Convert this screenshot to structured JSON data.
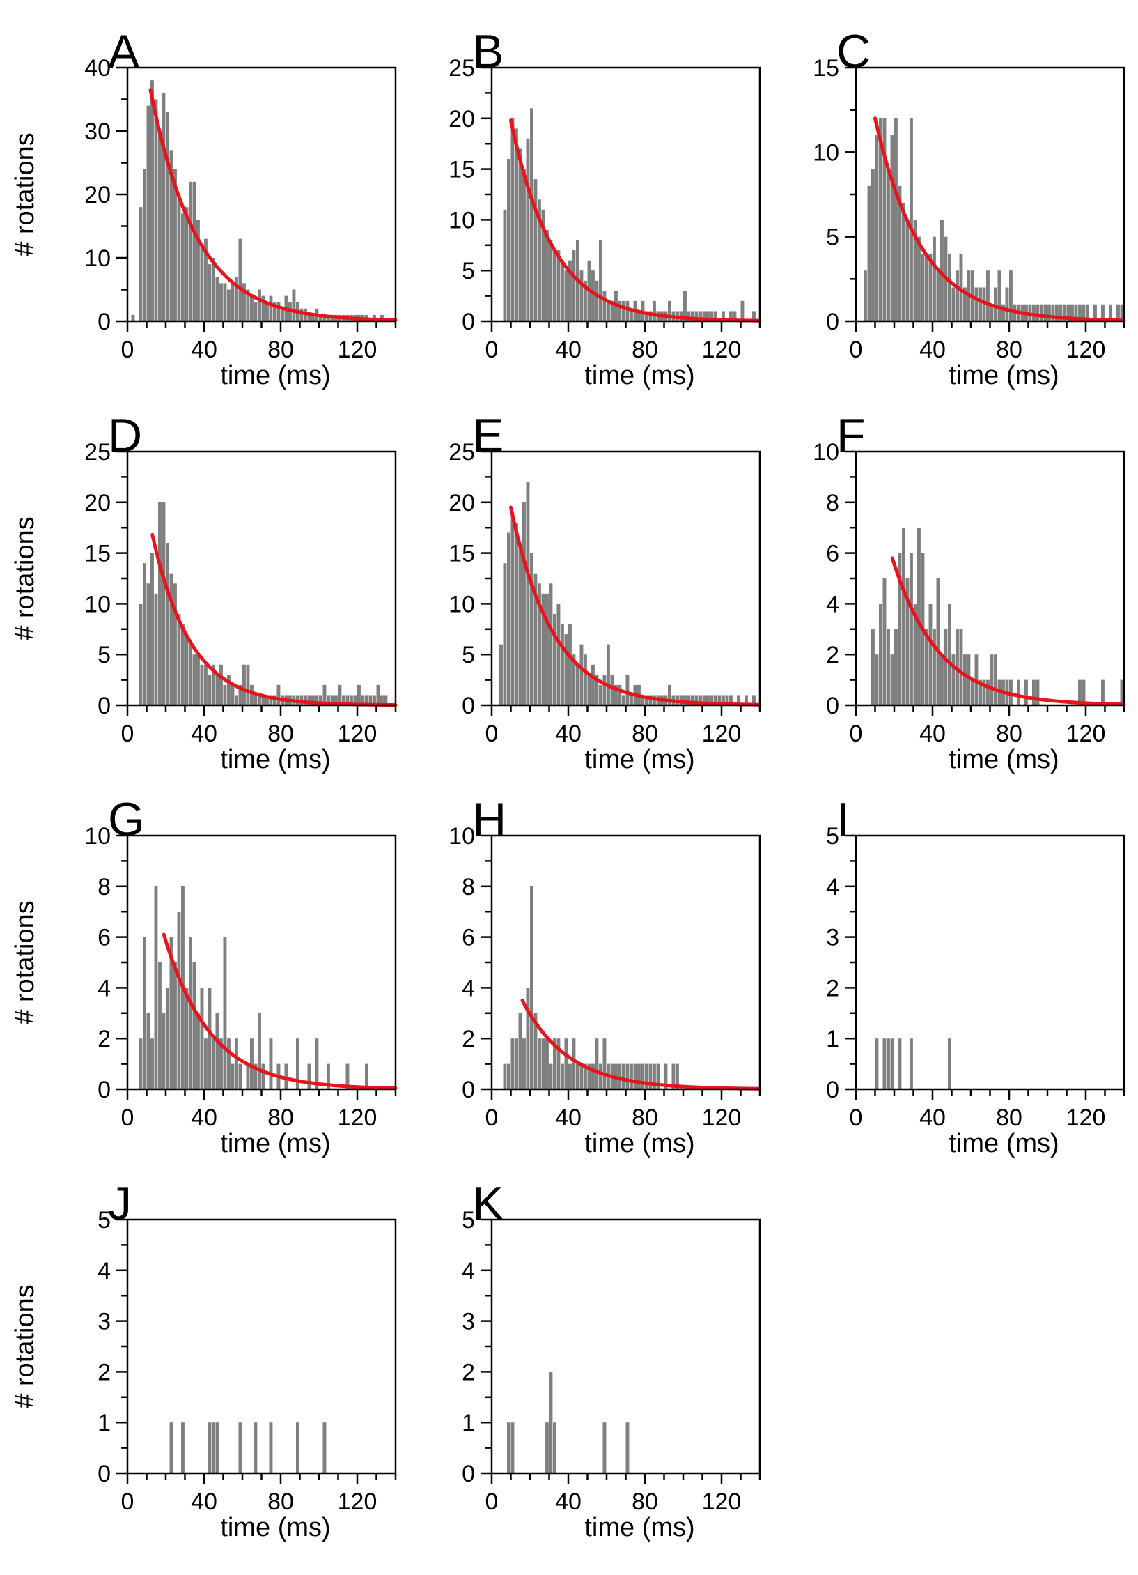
{
  "figure": {
    "xlabel": "time (ms)",
    "ylabel": "# rotations",
    "colors": {
      "bars": "#7f7f7f",
      "fit": "#e8141c",
      "axes": "#000000"
    }
  },
  "chart_data": [
    {
      "panel": "A",
      "type": "bar",
      "xlabel": "time (ms)",
      "ylabel": "# rotations",
      "xlim": [
        0,
        140
      ],
      "ylim": [
        0,
        40
      ],
      "xticks": [
        0,
        40,
        80,
        120
      ],
      "yticks": [
        0,
        10,
        20,
        30,
        40
      ],
      "bin_width": 2,
      "bins_start": [
        2,
        6,
        8,
        10,
        12,
        14,
        16,
        18,
        20,
        22,
        24,
        26,
        28,
        30,
        32,
        34,
        36,
        38,
        40,
        42,
        44,
        46,
        48,
        50,
        52,
        54,
        56,
        58,
        60,
        62,
        64,
        66,
        68,
        70,
        72,
        74,
        76,
        78,
        80,
        82,
        84,
        86,
        88,
        90,
        92,
        94,
        96,
        98,
        100,
        102,
        104,
        106,
        108,
        110,
        112,
        114,
        116,
        118,
        120,
        122,
        124,
        126,
        128,
        130,
        132,
        134
      ],
      "values": [
        1,
        18,
        24,
        34,
        38,
        35,
        30,
        36,
        33,
        27,
        24,
        20,
        17,
        18,
        22,
        22,
        16,
        12,
        13,
        9,
        10,
        7,
        6,
        6,
        5,
        6,
        7,
        13,
        6,
        5,
        4,
        3,
        5,
        4,
        3,
        4,
        3,
        3,
        2,
        4,
        3,
        5,
        3,
        2,
        2,
        1,
        1,
        2,
        1,
        1,
        1,
        1,
        1,
        1,
        1,
        1,
        1,
        1,
        1,
        1,
        1,
        0,
        1,
        0,
        1,
        0
      ],
      "fit": {
        "type": "exponential",
        "A": 36.5,
        "tau": 24,
        "x_start": 12,
        "x_end": 140
      }
    },
    {
      "panel": "B",
      "type": "bar",
      "xlabel": "time (ms)",
      "ylabel": "# rotations",
      "xlim": [
        0,
        140
      ],
      "ylim": [
        0,
        25
      ],
      "xticks": [
        0,
        40,
        80,
        120
      ],
      "yticks": [
        0,
        5,
        10,
        15,
        20,
        25
      ],
      "bin_width": 2,
      "bins_start": [
        2,
        6,
        8,
        10,
        12,
        14,
        16,
        18,
        20,
        22,
        24,
        26,
        28,
        30,
        32,
        34,
        36,
        38,
        40,
        42,
        44,
        46,
        48,
        50,
        52,
        54,
        56,
        58,
        60,
        62,
        64,
        66,
        68,
        70,
        72,
        74,
        76,
        78,
        80,
        82,
        84,
        86,
        88,
        90,
        92,
        94,
        96,
        98,
        100,
        102,
        104,
        106,
        108,
        110,
        112,
        114,
        116,
        118,
        120,
        122,
        124,
        126,
        128,
        130,
        132,
        134,
        136,
        138
      ],
      "values": [
        0,
        11,
        16,
        20,
        19,
        17,
        15,
        18,
        21,
        14,
        12,
        11,
        9,
        8,
        7,
        7,
        6,
        5,
        6,
        7,
        8,
        5,
        4,
        6,
        5,
        4,
        8,
        3,
        2,
        2,
        3,
        2,
        2,
        2,
        1,
        2,
        1,
        2,
        1,
        1,
        2,
        1,
        1,
        1,
        2,
        1,
        1,
        1,
        3,
        1,
        1,
        1,
        1,
        1,
        1,
        1,
        1,
        0,
        1,
        0,
        1,
        1,
        0,
        2,
        0,
        0,
        1,
        0
      ],
      "fit": {
        "type": "exponential",
        "A": 19.8,
        "tau": 22,
        "x_start": 10,
        "x_end": 140
      }
    },
    {
      "panel": "C",
      "type": "bar",
      "xlabel": "time (ms)",
      "ylabel": "# rotations",
      "xlim": [
        0,
        140
      ],
      "ylim": [
        0,
        15
      ],
      "xticks": [
        0,
        40,
        80,
        120
      ],
      "yticks": [
        0,
        5,
        10,
        15
      ],
      "bin_width": 2,
      "bins_start": [
        4,
        6,
        8,
        10,
        12,
        14,
        16,
        18,
        20,
        22,
        24,
        26,
        28,
        30,
        32,
        34,
        36,
        38,
        40,
        42,
        44,
        46,
        48,
        50,
        52,
        54,
        56,
        58,
        60,
        62,
        64,
        66,
        68,
        70,
        72,
        74,
        76,
        78,
        80,
        82,
        84,
        86,
        88,
        90,
        92,
        94,
        96,
        98,
        100,
        102,
        104,
        106,
        108,
        110,
        112,
        114,
        116,
        118,
        120,
        122,
        124,
        126,
        128,
        130,
        132,
        134,
        136,
        138
      ],
      "values": [
        3,
        8,
        9,
        11,
        12,
        12,
        9,
        11,
        12,
        8,
        7,
        6,
        12,
        6,
        5,
        4,
        4,
        4,
        5,
        3,
        6,
        5,
        4,
        2,
        3,
        4,
        2,
        3,
        3,
        2,
        2,
        2,
        3,
        1,
        2,
        3,
        1,
        2,
        3,
        1,
        1,
        1,
        1,
        1,
        1,
        1,
        1,
        1,
        1,
        1,
        1,
        1,
        1,
        1,
        1,
        1,
        1,
        1,
        1,
        0,
        1,
        0,
        1,
        0,
        1,
        0,
        1,
        1
      ],
      "fit": {
        "type": "exponential",
        "A": 12.0,
        "tau": 24,
        "x_start": 10,
        "x_end": 140
      }
    },
    {
      "panel": "D",
      "type": "bar",
      "xlabel": "time (ms)",
      "ylabel": "# rotations",
      "xlim": [
        0,
        140
      ],
      "ylim": [
        0,
        25
      ],
      "xticks": [
        0,
        40,
        80,
        120
      ],
      "yticks": [
        0,
        5,
        10,
        15,
        20,
        25
      ],
      "bin_width": 2,
      "bins_start": [
        6,
        8,
        10,
        12,
        14,
        16,
        18,
        20,
        22,
        24,
        26,
        28,
        30,
        32,
        34,
        36,
        38,
        40,
        42,
        44,
        46,
        48,
        50,
        52,
        54,
        56,
        58,
        60,
        62,
        64,
        66,
        68,
        70,
        72,
        74,
        76,
        78,
        80,
        82,
        84,
        86,
        88,
        90,
        92,
        94,
        96,
        98,
        100,
        102,
        104,
        106,
        108,
        110,
        112,
        114,
        116,
        118,
        120,
        122,
        124,
        126,
        128,
        130,
        132,
        134,
        136
      ],
      "values": [
        10,
        14,
        12,
        15,
        11,
        20,
        20,
        16,
        13,
        12,
        9,
        8,
        7,
        6,
        5,
        5,
        4,
        4,
        3,
        4,
        3,
        4,
        2,
        3,
        2,
        1,
        2,
        4,
        4,
        2,
        1,
        1,
        1,
        1,
        1,
        1,
        2,
        1,
        1,
        1,
        1,
        1,
        1,
        1,
        1,
        1,
        1,
        1,
        2,
        1,
        1,
        1,
        2,
        1,
        1,
        1,
        1,
        2,
        1,
        1,
        1,
        1,
        2,
        1,
        1,
        0
      ],
      "fit": {
        "type": "exponential",
        "A": 16.8,
        "tau": 20,
        "x_start": 13,
        "x_end": 140
      }
    },
    {
      "panel": "E",
      "type": "bar",
      "xlabel": "time (ms)",
      "ylabel": "# rotations",
      "xlim": [
        0,
        140
      ],
      "ylim": [
        0,
        25
      ],
      "xticks": [
        0,
        40,
        80,
        120
      ],
      "yticks": [
        0,
        5,
        10,
        15,
        20,
        25
      ],
      "bin_width": 2,
      "bins_start": [
        4,
        6,
        8,
        10,
        12,
        14,
        16,
        18,
        20,
        22,
        24,
        26,
        28,
        30,
        32,
        34,
        36,
        38,
        40,
        42,
        44,
        46,
        48,
        50,
        52,
        54,
        56,
        58,
        60,
        62,
        64,
        66,
        68,
        70,
        72,
        74,
        76,
        78,
        80,
        82,
        84,
        86,
        88,
        90,
        92,
        94,
        96,
        98,
        100,
        102,
        104,
        106,
        108,
        110,
        112,
        114,
        116,
        118,
        120,
        122,
        124,
        126,
        128,
        130,
        132,
        134,
        136,
        138
      ],
      "values": [
        6,
        14,
        17,
        19,
        18,
        16,
        20,
        22,
        15,
        13,
        12,
        11,
        11,
        12,
        9,
        10,
        8,
        7,
        8,
        5,
        4,
        6,
        5,
        3,
        4,
        3,
        2,
        3,
        6,
        3,
        2,
        2,
        1,
        3,
        1,
        2,
        2,
        1,
        1,
        1,
        1,
        1,
        1,
        1,
        2,
        1,
        1,
        1,
        1,
        1,
        1,
        1,
        1,
        1,
        1,
        1,
        1,
        1,
        1,
        1,
        1,
        0,
        1,
        0,
        1,
        0,
        1,
        0
      ],
      "fit": {
        "type": "exponential",
        "A": 19.5,
        "tau": 22,
        "x_start": 10,
        "x_end": 140
      }
    },
    {
      "panel": "F",
      "type": "bar",
      "xlabel": "time (ms)",
      "ylabel": "# rotations",
      "xlim": [
        0,
        140
      ],
      "ylim": [
        0,
        10
      ],
      "xticks": [
        0,
        40,
        80,
        120
      ],
      "yticks": [
        0,
        2,
        4,
        6,
        8,
        10
      ],
      "bin_width": 2,
      "bins_start": [
        8,
        10,
        12,
        14,
        16,
        18,
        20,
        22,
        24,
        26,
        28,
        30,
        32,
        34,
        36,
        38,
        40,
        42,
        44,
        46,
        48,
        50,
        52,
        54,
        56,
        58,
        60,
        62,
        64,
        66,
        68,
        70,
        72,
        74,
        76,
        78,
        80,
        82,
        84,
        86,
        88,
        90,
        92,
        94,
        96,
        98,
        100,
        102,
        104,
        106,
        108,
        110,
        112,
        114,
        116,
        118,
        120,
        122,
        124,
        126,
        128,
        130,
        132,
        134,
        136,
        138
      ],
      "values": [
        3,
        2,
        4,
        5,
        3,
        2,
        3,
        6,
        7,
        5,
        6,
        4,
        7,
        6,
        3,
        4,
        3,
        5,
        2,
        3,
        4,
        2,
        3,
        3,
        2,
        2,
        1,
        2,
        1,
        1,
        1,
        2,
        2,
        1,
        1,
        1,
        1,
        0,
        1,
        0,
        1,
        0,
        1,
        1,
        0,
        0,
        0,
        0,
        0,
        0,
        0,
        0,
        0,
        0,
        1,
        1,
        0,
        0,
        0,
        0,
        1,
        0,
        0,
        0,
        0,
        1
      ],
      "fit": {
        "type": "exponential",
        "A": 5.8,
        "tau": 24,
        "x_start": 19,
        "x_end": 140
      }
    },
    {
      "panel": "G",
      "type": "bar",
      "xlabel": "time (ms)",
      "ylabel": "# rotations",
      "xlim": [
        0,
        140
      ],
      "ylim": [
        0,
        10
      ],
      "xticks": [
        0,
        40,
        80,
        120
      ],
      "yticks": [
        0,
        2,
        4,
        6,
        8,
        10
      ],
      "bin_width": 2,
      "bins_start": [
        6,
        8,
        10,
        12,
        14,
        16,
        18,
        20,
        22,
        24,
        26,
        28,
        30,
        32,
        34,
        36,
        38,
        40,
        42,
        44,
        46,
        48,
        50,
        52,
        54,
        56,
        58,
        60,
        62,
        64,
        66,
        68,
        70,
        72,
        74,
        76,
        78,
        80,
        82,
        84,
        86,
        88,
        90,
        92,
        94,
        96,
        98,
        100,
        102,
        104,
        106,
        108,
        110,
        112,
        114,
        116,
        118,
        120,
        122,
        124,
        126,
        128,
        130,
        132,
        134,
        136
      ],
      "values": [
        2,
        6,
        3,
        2,
        8,
        5,
        3,
        4,
        6,
        5,
        7,
        8,
        4,
        6,
        5,
        3,
        4,
        2,
        4,
        2,
        3,
        2,
        6,
        2,
        1,
        2,
        1,
        0,
        1,
        2,
        1,
        3,
        1,
        0,
        2,
        0,
        1,
        0,
        1,
        0,
        0,
        2,
        0,
        0,
        1,
        0,
        2,
        0,
        0,
        1,
        0,
        0,
        0,
        0,
        1,
        0,
        0,
        0,
        0,
        1,
        0,
        0,
        0,
        0,
        0,
        0
      ],
      "fit": {
        "type": "exponential",
        "A": 6.1,
        "tau": 24,
        "x_start": 19,
        "x_end": 140
      }
    },
    {
      "panel": "H",
      "type": "bar",
      "xlabel": "time (ms)",
      "ylabel": "# rotations",
      "xlim": [
        0,
        140
      ],
      "ylim": [
        0,
        10
      ],
      "xticks": [
        0,
        40,
        80,
        120
      ],
      "yticks": [
        0,
        2,
        4,
        6,
        8,
        10
      ],
      "bin_width": 2,
      "bins_start": [
        6,
        8,
        10,
        12,
        14,
        16,
        18,
        20,
        22,
        24,
        26,
        28,
        30,
        32,
        34,
        36,
        38,
        40,
        42,
        44,
        46,
        48,
        50,
        52,
        54,
        56,
        58,
        60,
        62,
        64,
        66,
        68,
        70,
        72,
        74,
        76,
        78,
        80,
        82,
        84,
        86,
        88,
        90,
        92,
        94,
        96
      ],
      "values": [
        1,
        1,
        2,
        2,
        3,
        2,
        4,
        8,
        3,
        2,
        2,
        2,
        1,
        2,
        2,
        1,
        2,
        1,
        2,
        1,
        1,
        1,
        1,
        1,
        2,
        1,
        2,
        1,
        1,
        1,
        1,
        1,
        1,
        1,
        1,
        1,
        1,
        1,
        1,
        1,
        1,
        0,
        1,
        0,
        1,
        1
      ],
      "fit": {
        "type": "exponential",
        "A": 3.5,
        "tau": 24,
        "x_start": 16,
        "x_end": 140
      }
    },
    {
      "panel": "I",
      "type": "bar",
      "xlabel": "time (ms)",
      "ylabel": "# rotations",
      "xlim": [
        0,
        140
      ],
      "ylim": [
        0,
        5
      ],
      "xticks": [
        0,
        40,
        80,
        120
      ],
      "yticks": [
        0,
        1,
        2,
        3,
        4,
        5
      ],
      "bin_width": 2,
      "bins_start": [
        10,
        14,
        16,
        18,
        22,
        28,
        48
      ],
      "values": [
        1,
        1,
        1,
        1,
        1,
        1,
        1
      ]
    },
    {
      "panel": "J",
      "type": "bar",
      "xlabel": "time (ms)",
      "ylabel": "# rotations",
      "xlim": [
        0,
        140
      ],
      "ylim": [
        0,
        5
      ],
      "xticks": [
        0,
        40,
        80,
        120
      ],
      "yticks": [
        0,
        1,
        2,
        3,
        4,
        5
      ],
      "bin_width": 2,
      "bins_start": [
        22,
        28,
        42,
        44,
        46,
        58,
        66,
        74,
        88,
        102
      ],
      "values": [
        1,
        1,
        1,
        1,
        1,
        1,
        1,
        1,
        1,
        1
      ]
    },
    {
      "panel": "K",
      "type": "bar",
      "xlabel": "time (ms)",
      "ylabel": "# rotations",
      "xlim": [
        0,
        140
      ],
      "ylim": [
        0,
        5
      ],
      "xticks": [
        0,
        40,
        80,
        120
      ],
      "yticks": [
        0,
        1,
        2,
        3,
        4,
        5
      ],
      "bin_width": 2,
      "bins_start": [
        8,
        10,
        28,
        30,
        32,
        58,
        70
      ],
      "values": [
        1,
        1,
        1,
        2,
        1,
        1,
        1
      ]
    }
  ]
}
